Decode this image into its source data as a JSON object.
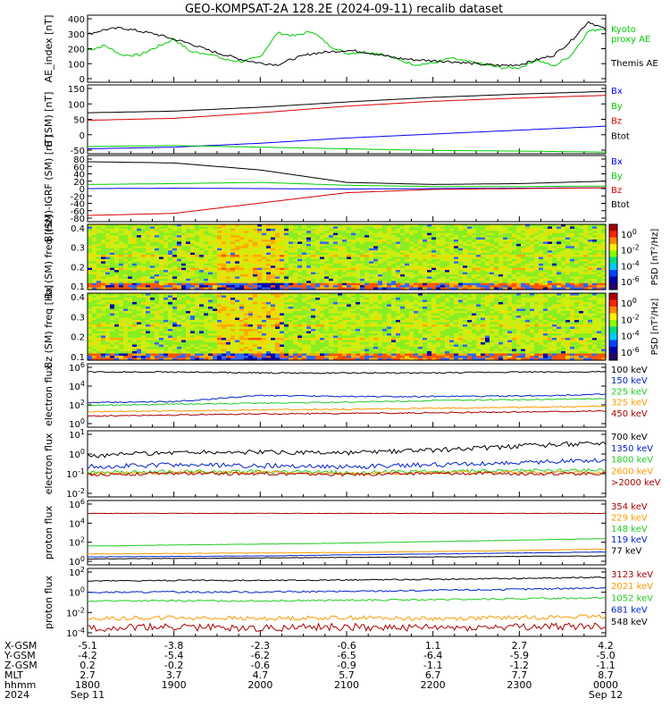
{
  "title": "GEO-KOMPSAT-2A 128.2E (2024-09-11) recalib dataset",
  "colors": {
    "black": "#000000",
    "blue": "#0000ff",
    "green": "#00cc00",
    "red": "#dd0000",
    "lime": "#22cc22",
    "teal": "#00aa66",
    "orange": "#ff9900",
    "maroon": "#aa0000",
    "dkblue": "#0022cc"
  },
  "chart_data": [
    {
      "type": "line",
      "ylabel": "AE_index [nT]",
      "yticks": [
        "400",
        "300",
        "200",
        "100",
        "0"
      ],
      "ylim": [
        0,
        420
      ],
      "x_hours": [
        18,
        24
      ],
      "series": [
        {
          "name": "Kyoto proxy AE",
          "color": "#00cc00",
          "legend": [
            "Kyoto",
            "proxy AE"
          ],
          "x": [
            18.0,
            18.2,
            18.4,
            18.6,
            18.8,
            19.0,
            19.2,
            19.4,
            19.6,
            19.8,
            20.0,
            20.2,
            20.4,
            20.6,
            20.8,
            21.0,
            21.2,
            21.4,
            21.6,
            21.8,
            22.0,
            22.2,
            22.4,
            22.6,
            22.8,
            23.0,
            23.2,
            23.4,
            23.6,
            23.8,
            24.0
          ],
          "y": [
            200,
            230,
            170,
            170,
            220,
            270,
            190,
            180,
            140,
            130,
            160,
            310,
            290,
            320,
            230,
            180,
            190,
            180,
            140,
            110,
            120,
            150,
            130,
            110,
            90,
            90,
            140,
            100,
            170,
            320,
            340
          ]
        },
        {
          "name": "Themis AE",
          "color": "#000000",
          "legend": [
            "Themis AE"
          ],
          "x": [
            18.0,
            18.2,
            18.4,
            18.6,
            18.8,
            19.0,
            19.2,
            19.4,
            19.6,
            19.8,
            20.0,
            20.2,
            20.4,
            20.6,
            20.8,
            21.0,
            21.2,
            21.4,
            21.6,
            21.8,
            22.0,
            22.2,
            22.4,
            22.6,
            22.8,
            23.0,
            23.2,
            23.4,
            23.6,
            23.8,
            24.0
          ],
          "y": [
            300,
            330,
            340,
            320,
            300,
            270,
            240,
            200,
            170,
            140,
            120,
            110,
            150,
            180,
            190,
            200,
            190,
            170,
            150,
            140,
            135,
            130,
            120,
            110,
            105,
            110,
            140,
            170,
            260,
            380,
            330
          ]
        }
      ]
    },
    {
      "type": "line",
      "ylabel": "B (SM) [nT]",
      "yticks": [
        "150",
        "100",
        "50",
        "0",
        "-50"
      ],
      "ylim": [
        -60,
        150
      ],
      "series": [
        {
          "name": "Bx",
          "color": "#0000ff",
          "x": [
            18,
            19,
            20,
            21,
            22,
            23,
            24
          ],
          "y": [
            -45,
            -40,
            -28,
            -12,
            0,
            12,
            24
          ]
        },
        {
          "name": "By",
          "color": "#00cc00",
          "x": [
            18,
            19,
            20,
            21,
            22,
            23,
            24
          ],
          "y": [
            -38,
            -35,
            -40,
            -45,
            -50,
            -52,
            -55
          ]
        },
        {
          "name": "Bz",
          "color": "#dd0000",
          "x": [
            18,
            19,
            20,
            21,
            22,
            23,
            24
          ],
          "y": [
            42,
            48,
            65,
            85,
            100,
            110,
            118
          ]
        },
        {
          "name": "Btot",
          "color": "#000000",
          "x": [
            18,
            19,
            20,
            21,
            22,
            23,
            24
          ],
          "y": [
            65,
            70,
            82,
            98,
            112,
            122,
            130
          ]
        }
      ]
    },
    {
      "type": "line",
      "ylabel": "B (SM)-IGRF (SM) [nT]",
      "yticks": [
        "80",
        "60",
        "40",
        "20",
        "0",
        "-20",
        "-40",
        "-60",
        "-80"
      ],
      "ylim": [
        -80,
        80
      ],
      "series": [
        {
          "name": "Bx",
          "color": "#0000ff",
          "x": [
            18,
            19,
            20,
            21,
            22,
            23,
            24
          ],
          "y": [
            0,
            1,
            0,
            -1,
            0,
            1,
            2
          ]
        },
        {
          "name": "By",
          "color": "#00cc00",
          "x": [
            18,
            19,
            20,
            21,
            22,
            23,
            24
          ],
          "y": [
            10,
            12,
            15,
            8,
            5,
            5,
            6
          ]
        },
        {
          "name": "Bz",
          "color": "#dd0000",
          "x": [
            18,
            19,
            20,
            21,
            22,
            23,
            24
          ],
          "y": [
            -65,
            -60,
            -35,
            -10,
            -2,
            0,
            2
          ]
        },
        {
          "name": "Btot",
          "color": "#000000",
          "x": [
            18,
            19,
            20,
            21,
            22,
            23,
            24
          ],
          "y": [
            65,
            62,
            45,
            15,
            10,
            12,
            18
          ]
        }
      ]
    },
    {
      "type": "heatmap",
      "ylabel": "Bx (SM) freq [Hz]",
      "yticks": [
        "0.4",
        "0.3",
        "0.2",
        "0.1"
      ],
      "ylim": [
        0,
        0.5
      ],
      "colorbar": {
        "label": "PSD [nT²/Hz]",
        "ticks": [
          "10^0",
          "10^-2",
          "10^-4",
          "10^-6"
        ]
      }
    },
    {
      "type": "heatmap",
      "ylabel": "Bz (SM) freq [Hz]",
      "yticks": [
        "0.4",
        "0.3",
        "0.2",
        "0.1"
      ],
      "ylim": [
        0,
        0.5
      ],
      "colorbar": {
        "label": "PSD [nT²/Hz]",
        "ticks": [
          "10^0",
          "10^-2",
          "10^-4",
          "10^-6"
        ]
      }
    },
    {
      "type": "line",
      "scale": "log",
      "ylabel": "electron flux",
      "yticks": [
        "10^6",
        "10^4",
        "10^2",
        "10^0"
      ],
      "ylim_log10": [
        -0.2,
        6
      ],
      "series": [
        {
          "name": "100 keV",
          "color": "#000000",
          "x": [
            18,
            19,
            20,
            21,
            22,
            23,
            24
          ],
          "y_log10": [
            5.2,
            5.2,
            5.1,
            5.1,
            5.1,
            5.2,
            5.2
          ]
        },
        {
          "name": "150 keV",
          "color": "#0022cc",
          "x": [
            18,
            19,
            20,
            21,
            22,
            23,
            24
          ],
          "y_log10": [
            2.2,
            2.3,
            2.9,
            2.8,
            2.8,
            2.85,
            3.0
          ]
        },
        {
          "name": "225 keV",
          "color": "#22cc22",
          "x": [
            18,
            19,
            20,
            21,
            22,
            23,
            24
          ],
          "y_log10": [
            1.9,
            2.05,
            2.15,
            2.25,
            2.4,
            2.5,
            2.6
          ]
        },
        {
          "name": "325 keV",
          "color": "#ff9900",
          "x": [
            18,
            19,
            20,
            21,
            22,
            23,
            24
          ],
          "y_log10": [
            1.3,
            1.4,
            1.5,
            1.55,
            1.65,
            1.75,
            1.85
          ]
        },
        {
          "name": "450 keV",
          "color": "#aa0000",
          "x": [
            18,
            19,
            20,
            21,
            22,
            23,
            24
          ],
          "y_log10": [
            0.9,
            1.0,
            1.1,
            1.15,
            1.2,
            1.3,
            1.4
          ]
        }
      ]
    },
    {
      "type": "line",
      "scale": "log",
      "ylabel": "electron flux",
      "yticks": [
        "10^1",
        "10^0",
        "10^-1",
        "10^-2"
      ],
      "ylim_log10": [
        -2.2,
        1.2
      ],
      "series": [
        {
          "name": "700 keV",
          "color": "#000000",
          "x": [
            18,
            19,
            20,
            21,
            22,
            23,
            24
          ],
          "y_log10": [
            -0.1,
            0.1,
            0.1,
            0.05,
            0.2,
            0.4,
            0.6
          ]
        },
        {
          "name": "1350 keV",
          "color": "#0022cc",
          "x": [
            18,
            19,
            20,
            21,
            22,
            23,
            24
          ],
          "y_log10": [
            -0.65,
            -0.55,
            -0.6,
            -0.65,
            -0.55,
            -0.45,
            -0.3
          ]
        },
        {
          "name": "1800 keV",
          "color": "#22cc22",
          "x": [
            18,
            19,
            20,
            21,
            22,
            23,
            24
          ],
          "y_log10": [
            -0.95,
            -0.9,
            -0.9,
            -0.95,
            -0.9,
            -0.85,
            -0.8
          ]
        },
        {
          "name": "2600 keV",
          "color": "#ff9900",
          "x": [
            18,
            19,
            20,
            21,
            22,
            23,
            24
          ],
          "y_log10": [
            -1.0,
            -0.95,
            -0.95,
            -1.0,
            -0.95,
            -0.95,
            -0.95
          ]
        },
        {
          "name": ">2000 keV",
          "color": "#aa0000",
          "x": [
            18,
            19,
            20,
            21,
            22,
            23,
            24
          ],
          "y_log10": [
            -1.05,
            -1.0,
            -1.0,
            -1.05,
            -1.0,
            -1.0,
            -1.0
          ]
        }
      ]
    },
    {
      "type": "line",
      "scale": "log",
      "ylabel": "proton flux",
      "yticks": [
        "10^6",
        "10^4",
        "10^2",
        "10^0"
      ],
      "ylim_log10": [
        -0.3,
        6.2
      ],
      "series": [
        {
          "name": "354 keV",
          "color": "#aa0000",
          "x": [
            18,
            19,
            20,
            21,
            22,
            23,
            24
          ],
          "y_log10": [
            4.9,
            4.9,
            4.9,
            4.9,
            4.9,
            4.9,
            4.9
          ]
        },
        {
          "name": "229 keV",
          "color": "#ff9900",
          "x": [
            18,
            19,
            20,
            21,
            22,
            23,
            24
          ],
          "y_log10": [
            0.8,
            0.85,
            0.9,
            0.95,
            1.05,
            1.15,
            1.3
          ]
        },
        {
          "name": "148 keV",
          "color": "#22cc22",
          "x": [
            18,
            19,
            20,
            21,
            22,
            23,
            24
          ],
          "y_log10": [
            1.6,
            1.7,
            1.8,
            1.9,
            2.05,
            2.2,
            2.35
          ]
        },
        {
          "name": "119 keV",
          "color": "#0022cc",
          "x": [
            18,
            19,
            20,
            21,
            22,
            23,
            24
          ],
          "y_log10": [
            0.5,
            0.55,
            0.6,
            0.7,
            0.8,
            0.9,
            1.0
          ]
        },
        {
          "name": "77 keV",
          "color": "#000000",
          "x": [
            18,
            19,
            20,
            21,
            22,
            23,
            24
          ],
          "y_log10": [
            0.3,
            0.35,
            0.4,
            0.45,
            0.5,
            0.55,
            0.6
          ]
        }
      ]
    },
    {
      "type": "line",
      "scale": "log",
      "ylabel": "proton flux",
      "yticks": [
        "10^2",
        "10^0",
        "10^-2",
        "10^-4"
      ],
      "ylim_log10": [
        -4.3,
        2.2
      ],
      "series": [
        {
          "name": "3123 keV",
          "color": "#aa0000",
          "x": [
            18,
            19,
            20,
            21,
            22,
            23,
            24
          ],
          "y_log10": [
            -3.5,
            -3.4,
            -3.5,
            -3.4,
            -3.5,
            -3.4,
            -3.3
          ]
        },
        {
          "name": "2021 keV",
          "color": "#ff9900",
          "x": [
            18,
            19,
            20,
            21,
            22,
            23,
            24
          ],
          "y_log10": [
            -2.6,
            -2.5,
            -2.6,
            -2.5,
            -2.6,
            -2.5,
            -2.4
          ]
        },
        {
          "name": "1052 keV",
          "color": "#22cc22",
          "x": [
            18,
            19,
            20,
            21,
            22,
            23,
            24
          ],
          "y_log10": [
            -0.9,
            -0.9,
            -0.9,
            -0.85,
            -0.8,
            -0.7,
            -0.6
          ]
        },
        {
          "name": "681 keV",
          "color": "#0022cc",
          "x": [
            18,
            19,
            20,
            21,
            22,
            23,
            24
          ],
          "y_log10": [
            -0.1,
            -0.05,
            -0.05,
            0.0,
            0.1,
            0.2,
            0.35
          ]
        },
        {
          "name": "548 keV",
          "color": "#000000",
          "x": [
            18,
            19,
            20,
            21,
            22,
            23,
            24
          ],
          "y_log10": [
            1.0,
            1.05,
            1.05,
            1.1,
            1.15,
            1.25,
            1.35
          ]
        }
      ]
    }
  ],
  "ephemeris": {
    "labels": [
      "X-GSM",
      "Y-GSM",
      "Z-GSM",
      "MLT",
      "hhmm",
      "2024"
    ],
    "columns": [
      [
        "-5.1",
        "-4.2",
        "0.2",
        "2.7",
        "1800",
        "Sep 11"
      ],
      [
        "-3.8",
        "-5.4",
        "-0.2",
        "3.7",
        "1900",
        ""
      ],
      [
        "-2.3",
        "-6.2",
        "-0.6",
        "4.7",
        "2000",
        ""
      ],
      [
        "-0.6",
        "-6.5",
        "-0.9",
        "5.7",
        "2100",
        ""
      ],
      [
        "1.1",
        "-6.4",
        "-1.1",
        "6.7",
        "2200",
        ""
      ],
      [
        "2.7",
        "-5.9",
        "-1.2",
        "7.7",
        "2300",
        ""
      ],
      [
        "4.2",
        "-5.0",
        "-1.1",
        "8.7",
        "0000",
        "Sep 12"
      ]
    ]
  }
}
